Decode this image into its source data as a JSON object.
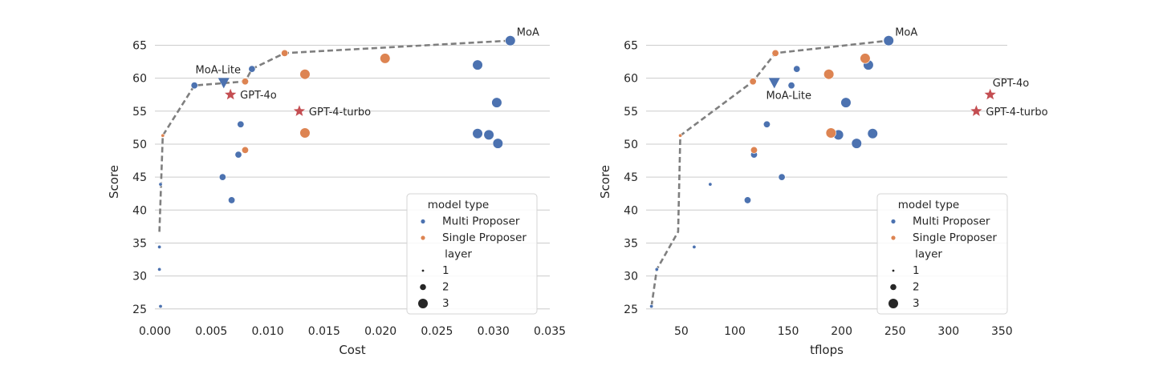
{
  "colors": {
    "multi": "#4c72b0",
    "single": "#dd8452",
    "reference": "#c44e52",
    "frontier": "#7f7f7f",
    "grid": "#cccccc"
  },
  "chart_data": [
    {
      "type": "scatter",
      "xlabel": "Cost",
      "ylabel": "Score",
      "xlim": [
        0.0,
        0.035
      ],
      "ylim": [
        24,
        67
      ],
      "xticks": [
        "0.000",
        "0.005",
        "0.010",
        "0.015",
        "0.020",
        "0.025",
        "0.030",
        "0.035"
      ],
      "xtick_values": [
        0.0,
        0.005,
        0.01,
        0.015,
        0.02,
        0.025,
        0.03,
        0.035
      ],
      "yticks": [
        "25",
        "30",
        "35",
        "40",
        "45",
        "50",
        "55",
        "60",
        "65"
      ],
      "ytick_values": [
        25,
        30,
        35,
        40,
        45,
        50,
        55,
        60,
        65
      ],
      "grid": "horizontal",
      "legend_position": "lower-right",
      "legend": {
        "hue_title": "model type",
        "hue_items": [
          "Multi Proposer",
          "Single Proposer"
        ],
        "size_title": "layer",
        "size_items": [
          "1",
          "2",
          "3"
        ]
      },
      "points": [
        {
          "x": 0.0005,
          "y": 25.4,
          "type": "multi",
          "layer": 1
        },
        {
          "x": 0.0004,
          "y": 31.0,
          "type": "multi",
          "layer": 1
        },
        {
          "x": 0.0004,
          "y": 34.4,
          "type": "multi",
          "layer": 1
        },
        {
          "x": 0.0005,
          "y": 43.9,
          "type": "multi",
          "layer": 1
        },
        {
          "x": 0.0035,
          "y": 58.9,
          "type": "multi",
          "layer": 2
        },
        {
          "x": 0.006,
          "y": 45.0,
          "type": "multi",
          "layer": 2
        },
        {
          "x": 0.0068,
          "y": 41.5,
          "type": "multi",
          "layer": 2
        },
        {
          "x": 0.0074,
          "y": 48.4,
          "type": "multi",
          "layer": 2
        },
        {
          "x": 0.0076,
          "y": 53.0,
          "type": "multi",
          "layer": 2
        },
        {
          "x": 0.0086,
          "y": 61.4,
          "type": "multi",
          "layer": 2
        },
        {
          "x": 0.0286,
          "y": 62.0,
          "type": "multi",
          "layer": 3
        },
        {
          "x": 0.0286,
          "y": 51.6,
          "type": "multi",
          "layer": 3
        },
        {
          "x": 0.0296,
          "y": 51.4,
          "type": "multi",
          "layer": 3
        },
        {
          "x": 0.0303,
          "y": 56.3,
          "type": "multi",
          "layer": 3
        },
        {
          "x": 0.0304,
          "y": 50.1,
          "type": "multi",
          "layer": 3
        },
        {
          "x": 0.0315,
          "y": 65.7,
          "type": "multi",
          "layer": 3
        },
        {
          "x": 0.0007,
          "y": 51.3,
          "type": "single",
          "layer": 1
        },
        {
          "x": 0.008,
          "y": 49.1,
          "type": "single",
          "layer": 2
        },
        {
          "x": 0.008,
          "y": 59.5,
          "type": "single",
          "layer": 2
        },
        {
          "x": 0.0115,
          "y": 63.8,
          "type": "single",
          "layer": 2
        },
        {
          "x": 0.0133,
          "y": 60.6,
          "type": "single",
          "layer": 3
        },
        {
          "x": 0.0133,
          "y": 51.7,
          "type": "single",
          "layer": 3
        },
        {
          "x": 0.0204,
          "y": 63.0,
          "type": "single",
          "layer": 3
        }
      ],
      "frontier": [
        [
          0.0004,
          36.7
        ],
        [
          0.0007,
          51.3
        ],
        [
          0.0035,
          58.9
        ],
        [
          0.008,
          59.5
        ],
        [
          0.0086,
          61.4
        ],
        [
          0.0115,
          63.8
        ],
        [
          0.0315,
          65.7
        ]
      ],
      "markers": [
        {
          "label": "MoA-Lite",
          "x": 0.0061,
          "y": 59.3,
          "shape": "triangle-down",
          "label_pos": "above"
        },
        {
          "label": "GPT-4o",
          "x": 0.0067,
          "y": 57.5,
          "shape": "star",
          "label_pos": "right"
        },
        {
          "label": "GPT-4-turbo",
          "x": 0.0128,
          "y": 55.0,
          "shape": "star",
          "label_pos": "right"
        }
      ],
      "labels": [
        {
          "label": "MoA",
          "x": 0.0315,
          "y": 65.7
        }
      ]
    },
    {
      "type": "scatter",
      "xlabel": "tflops",
      "ylabel": "Score",
      "xlim": [
        17,
        355
      ],
      "ylim": [
        24,
        67
      ],
      "xticks": [
        "50",
        "100",
        "150",
        "200",
        "250",
        "300",
        "350"
      ],
      "xtick_values": [
        50,
        100,
        150,
        200,
        250,
        300,
        350
      ],
      "yticks": [
        "25",
        "30",
        "35",
        "40",
        "45",
        "50",
        "55",
        "60",
        "65"
      ],
      "ytick_values": [
        25,
        30,
        35,
        40,
        45,
        50,
        55,
        60,
        65
      ],
      "grid": "horizontal",
      "legend_position": "lower-right",
      "legend": {
        "hue_title": "model type",
        "hue_items": [
          "Multi Proposer",
          "Single Proposer"
        ],
        "size_title": "layer",
        "size_items": [
          "1",
          "2",
          "3"
        ]
      },
      "points": [
        {
          "x": 22,
          "y": 25.4,
          "type": "multi",
          "layer": 1
        },
        {
          "x": 27,
          "y": 31.0,
          "type": "multi",
          "layer": 1
        },
        {
          "x": 62,
          "y": 34.4,
          "type": "multi",
          "layer": 1
        },
        {
          "x": 77,
          "y": 43.9,
          "type": "multi",
          "layer": 1
        },
        {
          "x": 118,
          "y": 48.4,
          "type": "multi",
          "layer": 2
        },
        {
          "x": 112,
          "y": 41.5,
          "type": "multi",
          "layer": 2
        },
        {
          "x": 130,
          "y": 53.0,
          "type": "multi",
          "layer": 2
        },
        {
          "x": 144,
          "y": 45.0,
          "type": "multi",
          "layer": 2
        },
        {
          "x": 153,
          "y": 58.9,
          "type": "multi",
          "layer": 2
        },
        {
          "x": 158,
          "y": 61.4,
          "type": "multi",
          "layer": 2
        },
        {
          "x": 197,
          "y": 51.4,
          "type": "multi",
          "layer": 3
        },
        {
          "x": 204,
          "y": 56.3,
          "type": "multi",
          "layer": 3
        },
        {
          "x": 214,
          "y": 50.1,
          "type": "multi",
          "layer": 3
        },
        {
          "x": 225,
          "y": 62.0,
          "type": "multi",
          "layer": 3
        },
        {
          "x": 229,
          "y": 51.6,
          "type": "multi",
          "layer": 3
        },
        {
          "x": 244,
          "y": 65.7,
          "type": "multi",
          "layer": 3
        },
        {
          "x": 49,
          "y": 51.3,
          "type": "single",
          "layer": 1
        },
        {
          "x": 118,
          "y": 49.1,
          "type": "single",
          "layer": 2
        },
        {
          "x": 117,
          "y": 59.5,
          "type": "single",
          "layer": 2
        },
        {
          "x": 138,
          "y": 63.8,
          "type": "single",
          "layer": 2
        },
        {
          "x": 188,
          "y": 60.6,
          "type": "single",
          "layer": 3
        },
        {
          "x": 190,
          "y": 51.7,
          "type": "single",
          "layer": 3
        },
        {
          "x": 222,
          "y": 63.0,
          "type": "single",
          "layer": 3
        }
      ],
      "frontier": [
        [
          22,
          25.4
        ],
        [
          27,
          31.0
        ],
        [
          47,
          36.7
        ],
        [
          49,
          51.3
        ],
        [
          117,
          59.5
        ],
        [
          138,
          63.8
        ],
        [
          244,
          65.7
        ]
      ],
      "markers": [
        {
          "label": "MoA-Lite",
          "x": 137,
          "y": 59.3,
          "shape": "triangle-down",
          "label_pos": "below"
        },
        {
          "label": "GPT-4o",
          "x": 339,
          "y": 57.5,
          "shape": "star",
          "label_pos": "above-right"
        },
        {
          "label": "GPT-4-turbo",
          "x": 326,
          "y": 55.0,
          "shape": "star",
          "label_pos": "right"
        }
      ],
      "labels": [
        {
          "label": "MoA",
          "x": 244,
          "y": 65.7
        }
      ]
    }
  ]
}
